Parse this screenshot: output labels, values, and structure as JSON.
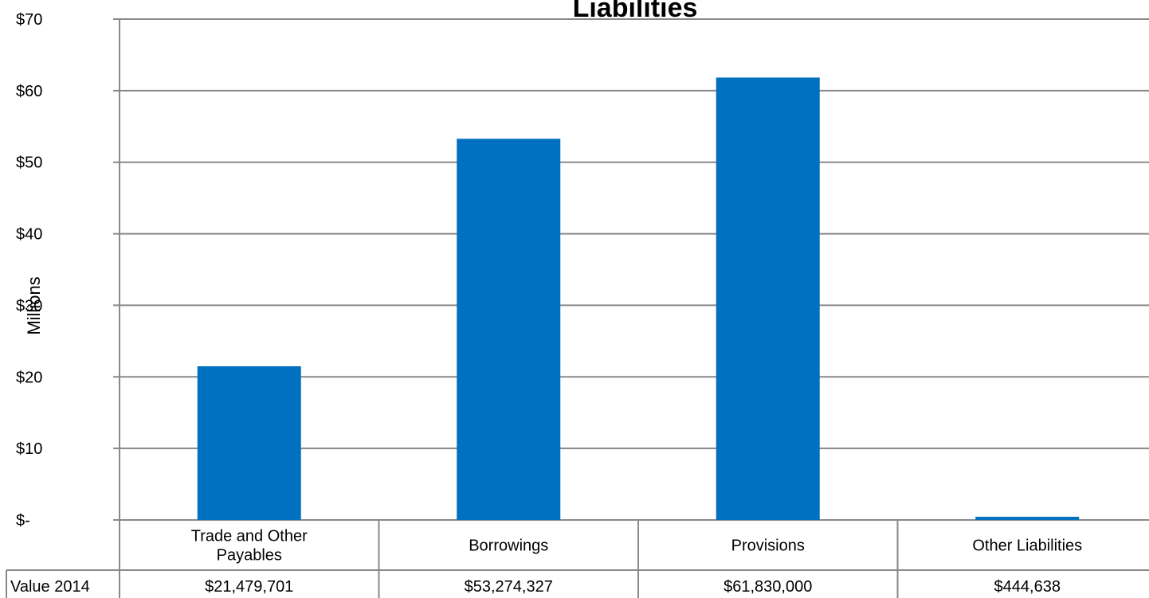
{
  "chart_data": {
    "type": "bar",
    "title": "Liabilities",
    "ylabel": "Millions",
    "xlabel": "",
    "categories": [
      [
        "Trade and Other",
        "Payables"
      ],
      [
        "Borrowings"
      ],
      [
        "Provisions"
      ],
      [
        "Other Liabilities"
      ]
    ],
    "series": [
      {
        "name": "Value 2014",
        "values": [
          21.479701,
          53.274327,
          61.83,
          0.444638
        ],
        "labels": [
          "$21,479,701",
          "$53,274,327",
          "$61,830,000",
          "$444,638"
        ],
        "color": "#0070C0"
      }
    ],
    "ylim": [
      0,
      70
    ],
    "yticks": [
      0,
      10,
      20,
      30,
      40,
      50,
      60,
      70
    ],
    "ytick_labels": [
      "$-",
      "$10",
      "$20",
      "$30",
      "$40",
      "$50",
      "$60",
      "$70"
    ],
    "grid": true,
    "legend": "data-table-bottom"
  },
  "colors": {
    "bar": "#0070C0",
    "grid": "#898989",
    "axis": "#898989"
  }
}
